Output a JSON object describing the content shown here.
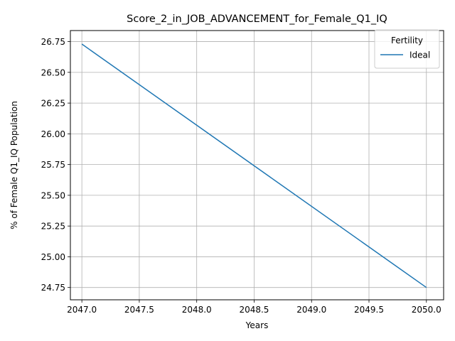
{
  "chart_data": {
    "type": "line",
    "title": "Score_2_in_JOB_ADVANCEMENT_for_Female_Q1_IQ",
    "xlabel": "Years",
    "ylabel": "% of Female Q1_IQ Population",
    "xlim": [
      2046.9,
      2050.15
    ],
    "ylim": [
      24.65,
      26.84
    ],
    "xticks": [
      2047.0,
      2047.5,
      2048.0,
      2048.5,
      2049.0,
      2049.5,
      2050.0
    ],
    "xtick_labels": [
      "2047.0",
      "2047.5",
      "2048.0",
      "2048.5",
      "2049.0",
      "2049.5",
      "2050.0"
    ],
    "yticks": [
      24.75,
      25.0,
      25.25,
      25.5,
      25.75,
      26.0,
      26.25,
      26.5,
      26.75
    ],
    "ytick_labels": [
      "24.75",
      "25.00",
      "25.25",
      "25.50",
      "25.75",
      "26.00",
      "26.25",
      "26.50",
      "26.75"
    ],
    "grid": true,
    "legend": {
      "title": "Fertility",
      "placement": "top-right"
    },
    "series": [
      {
        "name": "Ideal",
        "color": "#1f77b4",
        "x": [
          2047,
          2050
        ],
        "y": [
          26.73,
          24.75
        ]
      }
    ]
  }
}
